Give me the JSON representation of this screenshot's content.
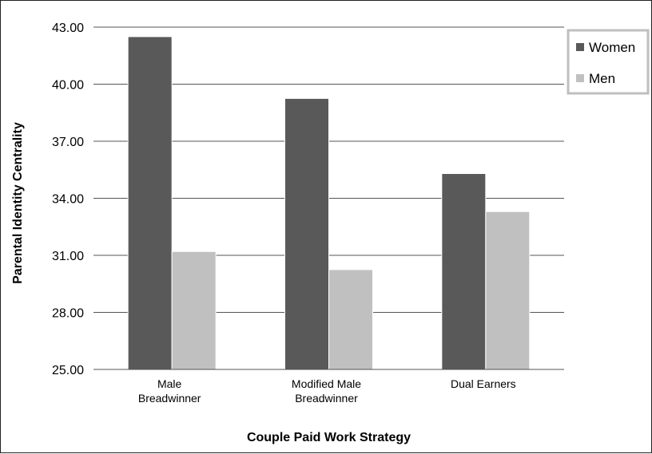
{
  "chart_data": {
    "type": "bar",
    "categories": [
      [
        "Male",
        "Breadwinner"
      ],
      [
        "Modified Male",
        "Breadwinner"
      ],
      [
        "Dual Earners"
      ]
    ],
    "series": [
      {
        "name": "Women",
        "color": "#595959",
        "values": [
          42.5,
          39.25,
          35.3
        ]
      },
      {
        "name": "Men",
        "color": "#c0c0c0",
        "values": [
          31.2,
          30.25,
          33.3
        ]
      }
    ],
    "xlabel": "Couple Paid Work Strategy",
    "ylabel": "Parental Identity Centrality",
    "ylim": [
      25.0,
      43.0
    ],
    "yticks": [
      "25.00",
      "28.00",
      "31.00",
      "34.00",
      "37.00",
      "40.00",
      "43.00"
    ],
    "grid": true,
    "legend_position": "top-right"
  }
}
